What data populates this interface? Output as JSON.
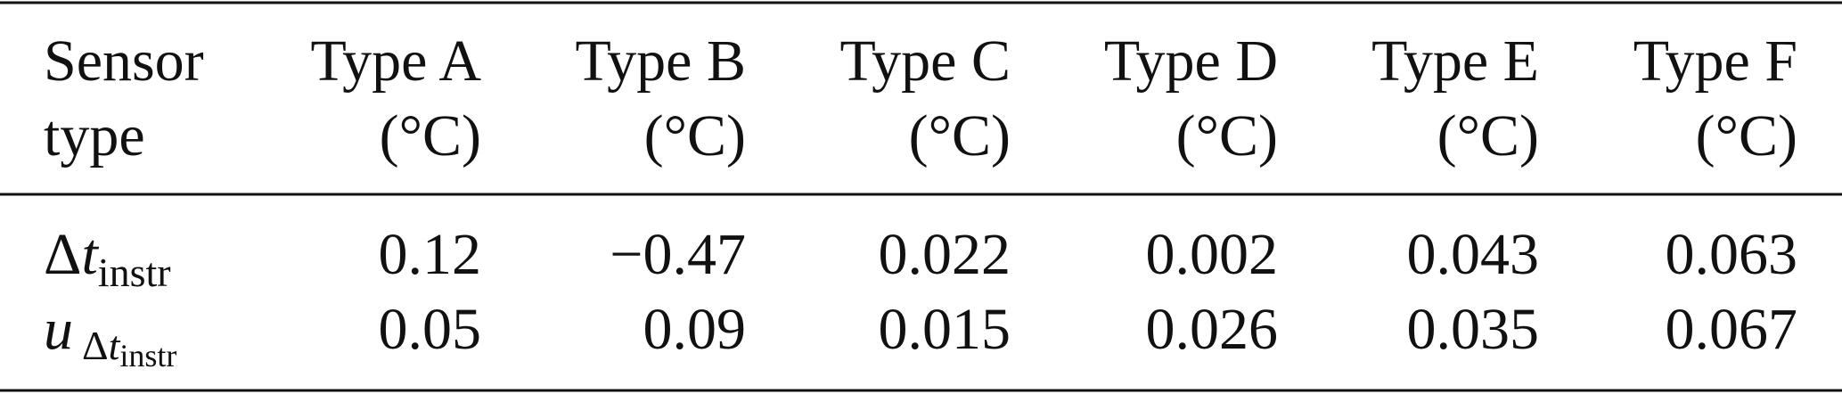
{
  "table": {
    "header": {
      "first": [
        "Sensor",
        "type"
      ],
      "columns": [
        {
          "name": "Type A",
          "unit": "(°C)"
        },
        {
          "name": "Type B",
          "unit": "(°C)"
        },
        {
          "name": "Type C",
          "unit": "(°C)"
        },
        {
          "name": "Type D",
          "unit": "(°C)"
        },
        {
          "name": "Type E",
          "unit": "(°C)"
        },
        {
          "name": "Type F",
          "unit": "(°C)"
        }
      ]
    },
    "rows": [
      {
        "label": {
          "main": "Δ",
          "var": "t",
          "sub": "instr"
        },
        "values": [
          "0.12",
          "−0.47",
          "0.022",
          "0.002",
          "0.043",
          "0.063"
        ]
      },
      {
        "label": {
          "var": "u",
          "sub_main": "Δ",
          "sub_var": "t",
          "sub_sub": "instr"
        },
        "values": [
          "0.05",
          "0.09",
          "0.015",
          "0.026",
          "0.035",
          "0.067"
        ]
      }
    ]
  }
}
